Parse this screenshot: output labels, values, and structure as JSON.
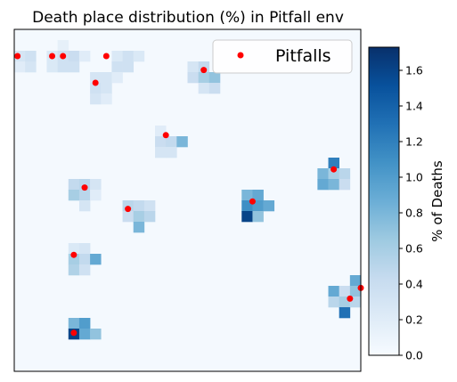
{
  "chart_data": {
    "type": "heatmap",
    "title": "Death place distribution (%) in Pitfall env",
    "xlabel": "",
    "ylabel": "",
    "grid_size": [
      32,
      32
    ],
    "xticks_shown": false,
    "yticks_shown": false,
    "colormap": "Blues",
    "colorbar": {
      "label": "% of Deaths",
      "vmin": 0,
      "vmax": 1.73,
      "ticks": [
        "0.0",
        "0.2",
        "0.4",
        "0.6",
        "0.8",
        "1.0",
        "1.2",
        "1.4",
        "1.6"
      ],
      "tick_values": [
        0,
        0.2,
        0.4,
        0.6,
        0.8,
        1.0,
        1.2,
        1.4,
        1.6
      ]
    },
    "background_value": 0.03,
    "cells": [
      {
        "col": 0,
        "row": 2,
        "value": 0.3
      },
      {
        "col": 0,
        "row": 3,
        "value": 0.2
      },
      {
        "col": 1,
        "row": 2,
        "value": 0.35
      },
      {
        "col": 1,
        "row": 3,
        "value": 0.3
      },
      {
        "col": 3,
        "row": 2,
        "value": 0.25
      },
      {
        "col": 3,
        "row": 3,
        "value": 0.25
      },
      {
        "col": 4,
        "row": 1,
        "value": 0.15
      },
      {
        "col": 4,
        "row": 2,
        "value": 0.35
      },
      {
        "col": 4,
        "row": 3,
        "value": 0.35
      },
      {
        "col": 5,
        "row": 2,
        "value": 0.4
      },
      {
        "col": 5,
        "row": 3,
        "value": 0.35
      },
      {
        "col": 6,
        "row": 2,
        "value": 0.2
      },
      {
        "col": 7,
        "row": 4,
        "value": 0.3
      },
      {
        "col": 7,
        "row": 5,
        "value": 0.35
      },
      {
        "col": 7,
        "row": 6,
        "value": 0.3
      },
      {
        "col": 8,
        "row": 4,
        "value": 0.3
      },
      {
        "col": 8,
        "row": 5,
        "value": 0.3
      },
      {
        "col": 8,
        "row": 6,
        "value": 0.2
      },
      {
        "col": 9,
        "row": 2,
        "value": 0.25
      },
      {
        "col": 9,
        "row": 3,
        "value": 0.35
      },
      {
        "col": 9,
        "row": 4,
        "value": 0.2
      },
      {
        "col": 10,
        "row": 2,
        "value": 0.35
      },
      {
        "col": 10,
        "row": 3,
        "value": 0.35
      },
      {
        "col": 11,
        "row": 2,
        "value": 0.25
      },
      {
        "col": 16,
        "row": 3,
        "value": 0.3
      },
      {
        "col": 16,
        "row": 4,
        "value": 0.4
      },
      {
        "col": 17,
        "row": 3,
        "value": 0.45
      },
      {
        "col": 17,
        "row": 4,
        "value": 0.6
      },
      {
        "col": 17,
        "row": 5,
        "value": 0.3
      },
      {
        "col": 18,
        "row": 4,
        "value": 0.7
      },
      {
        "col": 18,
        "row": 5,
        "value": 0.4
      },
      {
        "col": 13,
        "row": 9,
        "value": 0.2
      },
      {
        "col": 13,
        "row": 10,
        "value": 0.4
      },
      {
        "col": 13,
        "row": 11,
        "value": 0.3
      },
      {
        "col": 14,
        "row": 10,
        "value": 0.45
      },
      {
        "col": 14,
        "row": 11,
        "value": 0.3
      },
      {
        "col": 15,
        "row": 10,
        "value": 0.8
      },
      {
        "col": 5,
        "row": 14,
        "value": 0.45
      },
      {
        "col": 5,
        "row": 15,
        "value": 0.6
      },
      {
        "col": 6,
        "row": 14,
        "value": 0.5
      },
      {
        "col": 6,
        "row": 15,
        "value": 0.5
      },
      {
        "col": 6,
        "row": 16,
        "value": 0.3
      },
      {
        "col": 7,
        "row": 14,
        "value": 0.3
      },
      {
        "col": 7,
        "row": 15,
        "value": 0.2
      },
      {
        "col": 10,
        "row": 16,
        "value": 0.5
      },
      {
        "col": 10,
        "row": 17,
        "value": 0.4
      },
      {
        "col": 11,
        "row": 16,
        "value": 0.45
      },
      {
        "col": 11,
        "row": 17,
        "value": 0.6
      },
      {
        "col": 11,
        "row": 18,
        "value": 0.8
      },
      {
        "col": 12,
        "row": 16,
        "value": 0.35
      },
      {
        "col": 12,
        "row": 17,
        "value": 0.5
      },
      {
        "col": 21,
        "row": 15,
        "value": 0.8
      },
      {
        "col": 21,
        "row": 16,
        "value": 1.1
      },
      {
        "col": 21,
        "row": 17,
        "value": 1.6
      },
      {
        "col": 22,
        "row": 15,
        "value": 0.9
      },
      {
        "col": 22,
        "row": 16,
        "value": 1.0
      },
      {
        "col": 22,
        "row": 17,
        "value": 0.7
      },
      {
        "col": 23,
        "row": 16,
        "value": 0.9
      },
      {
        "col": 28,
        "row": 13,
        "value": 0.8
      },
      {
        "col": 28,
        "row": 14,
        "value": 0.9
      },
      {
        "col": 29,
        "row": 12,
        "value": 1.2
      },
      {
        "col": 29,
        "row": 13,
        "value": 0.6
      },
      {
        "col": 29,
        "row": 14,
        "value": 0.8
      },
      {
        "col": 30,
        "row": 13,
        "value": 0.5
      },
      {
        "col": 30,
        "row": 14,
        "value": 0.4
      },
      {
        "col": 5,
        "row": 20,
        "value": 0.25
      },
      {
        "col": 5,
        "row": 21,
        "value": 0.6
      },
      {
        "col": 5,
        "row": 22,
        "value": 0.55
      },
      {
        "col": 6,
        "row": 20,
        "value": 0.3
      },
      {
        "col": 6,
        "row": 21,
        "value": 0.45
      },
      {
        "col": 6,
        "row": 22,
        "value": 0.35
      },
      {
        "col": 7,
        "row": 21,
        "value": 0.9
      },
      {
        "col": 5,
        "row": 27,
        "value": 0.8
      },
      {
        "col": 5,
        "row": 28,
        "value": 1.6
      },
      {
        "col": 6,
        "row": 27,
        "value": 1.0
      },
      {
        "col": 6,
        "row": 28,
        "value": 0.9
      },
      {
        "col": 7,
        "row": 28,
        "value": 0.7
      },
      {
        "col": 29,
        "row": 24,
        "value": 0.9
      },
      {
        "col": 29,
        "row": 25,
        "value": 0.5
      },
      {
        "col": 30,
        "row": 24,
        "value": 0.4
      },
      {
        "col": 30,
        "row": 25,
        "value": 0.6
      },
      {
        "col": 30,
        "row": 26,
        "value": 1.3
      },
      {
        "col": 31,
        "row": 23,
        "value": 0.9
      },
      {
        "col": 31,
        "row": 24,
        "value": 0.7
      },
      {
        "col": 31,
        "row": 25,
        "value": 0.5
      }
    ],
    "series": [
      {
        "name": "Pitfalls",
        "type": "scatter",
        "color": "#ff0000",
        "points": [
          {
            "x": 0.3,
            "y": 2.5
          },
          {
            "x": 3.5,
            "y": 2.5
          },
          {
            "x": 4.5,
            "y": 2.5
          },
          {
            "x": 8.5,
            "y": 2.5
          },
          {
            "x": 7.5,
            "y": 5.0
          },
          {
            "x": 17.5,
            "y": 3.8
          },
          {
            "x": 14.0,
            "y": 9.9
          },
          {
            "x": 6.5,
            "y": 14.8
          },
          {
            "x": 10.5,
            "y": 16.8
          },
          {
            "x": 22.0,
            "y": 16.1
          },
          {
            "x": 29.5,
            "y": 13.1
          },
          {
            "x": 5.5,
            "y": 21.1
          },
          {
            "x": 32.0,
            "y": 24.2
          },
          {
            "x": 31.0,
            "y": 25.2
          },
          {
            "x": 5.5,
            "y": 28.4
          }
        ]
      }
    ],
    "legend": {
      "placement": "top-right",
      "entries": [
        "Pitfalls"
      ]
    }
  }
}
